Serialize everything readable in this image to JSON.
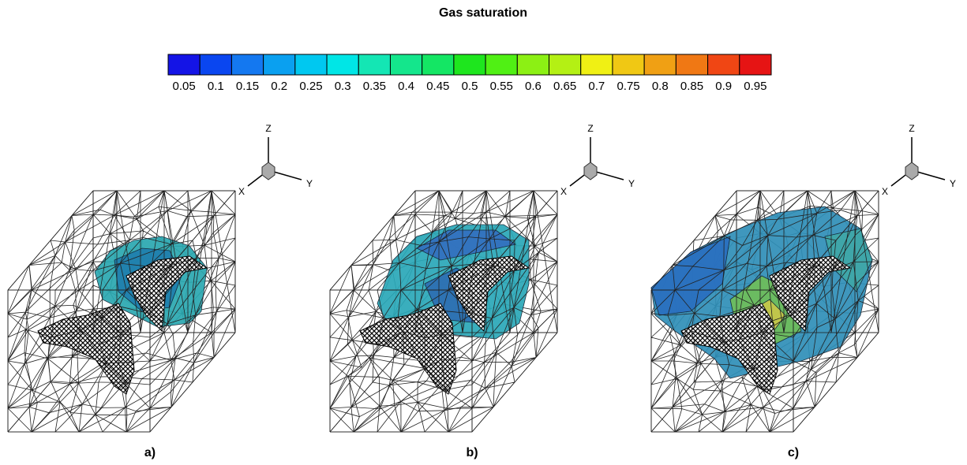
{
  "title": "Gas saturation",
  "colorbar": {
    "ticks": [
      0.05,
      0.1,
      0.15,
      0.2,
      0.25,
      0.3,
      0.35,
      0.4,
      0.45,
      0.5,
      0.55,
      0.6,
      0.65,
      0.7,
      0.75,
      0.8,
      0.85,
      0.9,
      0.95
    ],
    "colors": [
      "#1414e6",
      "#0a46f0",
      "#1478f0",
      "#0aa0f0",
      "#00c8f0",
      "#00e6e6",
      "#14e6b4",
      "#14e68c",
      "#14e664",
      "#1ee61e",
      "#50f014",
      "#8cf014",
      "#b4f014",
      "#f0f014",
      "#f0c814",
      "#f0a014",
      "#f07814",
      "#f04614",
      "#e61414"
    ]
  },
  "panels": [
    {
      "label": "a)",
      "axes": {
        "x": "X",
        "y": "Y",
        "z": "Z"
      }
    },
    {
      "label": "b)",
      "axes": {
        "x": "X",
        "y": "Y",
        "z": "Z"
      }
    },
    {
      "label": "c)",
      "axes": {
        "x": "X",
        "y": "Y",
        "z": "Z"
      }
    }
  ]
}
